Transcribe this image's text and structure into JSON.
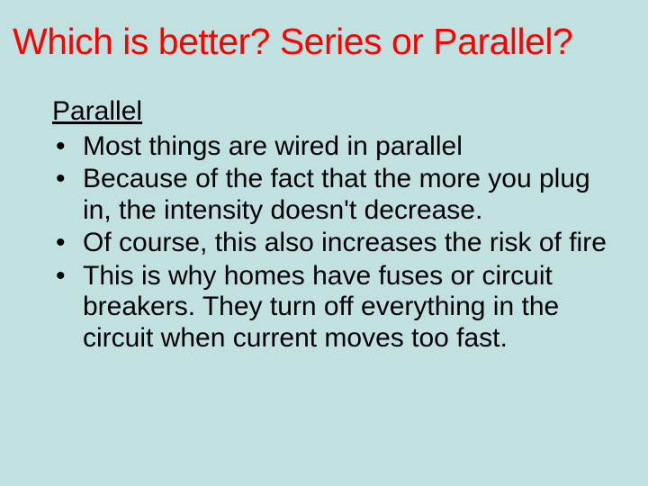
{
  "slide": {
    "background_color": "#c1e0e0",
    "title": {
      "text": "Which is better?  Series or Parallel?",
      "color": "#ff0000",
      "fontsize": 41
    },
    "subheading": {
      "text": "Parallel",
      "underline": true,
      "fontsize": 30,
      "color": "#000000"
    },
    "bullets": [
      "Most things are wired in parallel",
      "Because of the fact that the more you plug in, the intensity doesn't decrease.",
      "Of course, this also increases the risk of fire",
      "This is why homes have fuses or circuit breakers.  They turn off everything in the circuit when current moves too fast."
    ],
    "bullet_fontsize": 30,
    "bullet_color": "#000000"
  }
}
